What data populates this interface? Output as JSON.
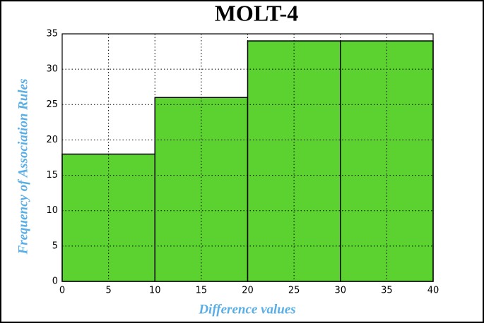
{
  "chart_data": {
    "type": "histogram",
    "title": "MOLT-4",
    "x_label": "Difference values",
    "y_label": "Frequency of Association Rules",
    "bins": [
      0,
      10,
      20,
      30,
      40
    ],
    "values": [
      18,
      26,
      34,
      34
    ],
    "color": "#5bd22f",
    "xlim": [
      0,
      40
    ],
    "ylim": [
      0,
      35
    ],
    "xticks": [
      0,
      5,
      10,
      15,
      20,
      25,
      30,
      35,
      40
    ],
    "yticks": [
      0,
      5,
      10,
      15,
      20,
      25,
      30,
      35
    ],
    "grid": true
  }
}
